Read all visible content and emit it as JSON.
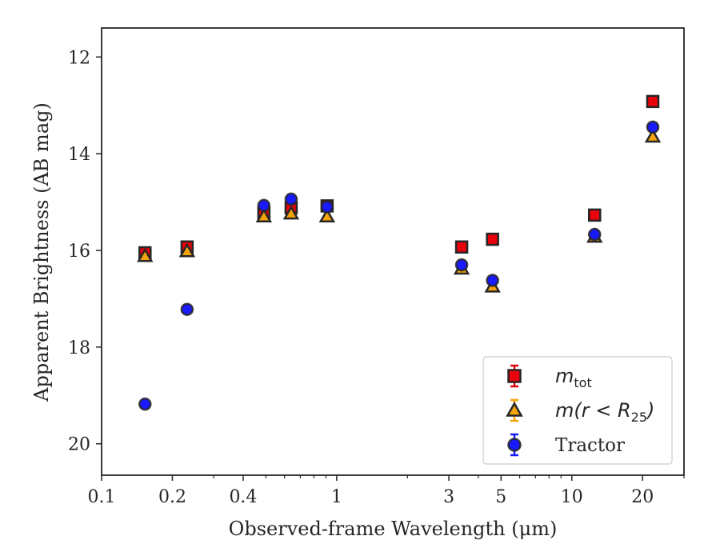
{
  "chart_data": {
    "type": "scatter",
    "xlabel": "Observed-frame Wavelength (μm)",
    "ylabel": "Apparent Brightness (AB mag)",
    "xscale": "log",
    "xlim": [
      0.1,
      30
    ],
    "ylim": [
      20.65,
      11.4
    ],
    "y_inverted": true,
    "xticks": [
      {
        "value": 0.1,
        "label": "0.1"
      },
      {
        "value": 0.2,
        "label": "0.2"
      },
      {
        "value": 0.4,
        "label": "0.4"
      },
      {
        "value": 1,
        "label": "1"
      },
      {
        "value": 3,
        "label": "3"
      },
      {
        "value": 5,
        "label": "5"
      },
      {
        "value": 10,
        "label": "10"
      },
      {
        "value": 20,
        "label": "20"
      }
    ],
    "yticks": [
      {
        "value": 12,
        "label": "12"
      },
      {
        "value": 14,
        "label": "14"
      },
      {
        "value": 16,
        "label": "16"
      },
      {
        "value": 18,
        "label": "18"
      },
      {
        "value": 20,
        "label": "20"
      }
    ],
    "legend": {
      "position": "lower-right",
      "entries": [
        {
          "series": "m_tot",
          "label_main": "m",
          "label_sub": "tot",
          "label_tail": ""
        },
        {
          "series": "m_r25",
          "label_main": "m(r < R",
          "label_sub": "25",
          "label_tail": ")"
        },
        {
          "series": "tractor",
          "label_main": "Tractor",
          "label_sub": "",
          "label_tail": ""
        }
      ]
    },
    "series": [
      {
        "id": "m_tot",
        "marker": "square",
        "color": "#e8000b",
        "errcolor": "#e8000b",
        "edgecolor": "#262626",
        "x": [
          0.153,
          0.231,
          0.49,
          0.64,
          0.91,
          3.4,
          4.6,
          12.5,
          22.1
        ],
        "y": [
          16.05,
          15.93,
          15.23,
          15.12,
          15.08,
          15.93,
          15.77,
          15.27,
          12.92
        ]
      },
      {
        "id": "m_r25",
        "marker": "triangle",
        "color": "#f5a30b",
        "errcolor": "#f5a30b",
        "edgecolor": "#262626",
        "x": [
          0.153,
          0.231,
          0.49,
          0.64,
          0.91,
          3.4,
          4.6,
          12.5,
          22.1
        ],
        "y": [
          16.12,
          16.02,
          15.3,
          15.24,
          15.3,
          16.38,
          16.75,
          15.72,
          13.65
        ]
      },
      {
        "id": "tractor",
        "marker": "circle",
        "color": "#1a1aff",
        "errcolor": "#1a1aff",
        "edgecolor": "#262626",
        "x": [
          0.153,
          0.231,
          0.49,
          0.64,
          0.91,
          3.4,
          4.6,
          12.5,
          22.1
        ],
        "y": [
          19.18,
          17.22,
          15.07,
          14.94,
          15.1,
          16.3,
          16.62,
          15.67,
          13.45
        ]
      }
    ]
  }
}
